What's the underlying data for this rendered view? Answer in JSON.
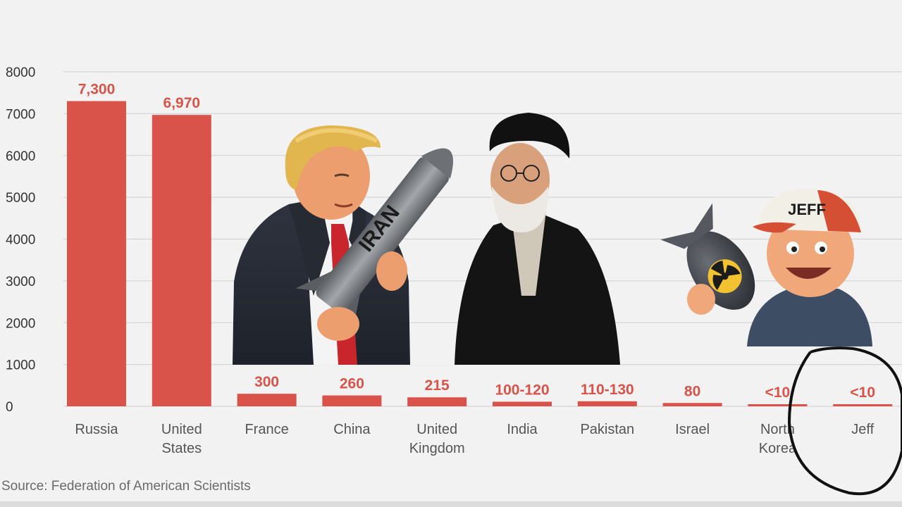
{
  "chart_data": {
    "type": "bar",
    "title": "",
    "xlabel": "",
    "ylabel": "",
    "ylim": [
      0,
      8000
    ],
    "yticks": [
      0,
      1000,
      2000,
      3000,
      4000,
      5000,
      6000,
      7000,
      8000
    ],
    "grid": true,
    "categories": [
      [
        "Russia"
      ],
      [
        "United",
        "States"
      ],
      [
        "France"
      ],
      [
        "China"
      ],
      [
        "United",
        "Kingdom"
      ],
      [
        "India"
      ],
      [
        "Pakistan"
      ],
      [
        "Israel"
      ],
      [
        "North",
        "Korea"
      ],
      [
        "Jeff"
      ]
    ],
    "values": [
      7300,
      6970,
      300,
      260,
      215,
      110,
      120,
      80,
      10,
      10
    ],
    "data_labels": [
      "7,300",
      "6,970",
      "300",
      "260",
      "215",
      "100-120",
      "110-130",
      "80",
      "<10",
      "<10"
    ],
    "bar_color": "#d9534a"
  },
  "source": "Source: Federation of American Scientists",
  "overlays": [
    {
      "name": "suited-man-with-missile",
      "missile_text": "IRAN"
    },
    {
      "name": "cleric-in-black-robe"
    },
    {
      "name": "cartoon-man-with-nuclear-bomb",
      "cap_text": "JEFF"
    },
    {
      "name": "hand-drawn-circle-around-jeff"
    }
  ]
}
